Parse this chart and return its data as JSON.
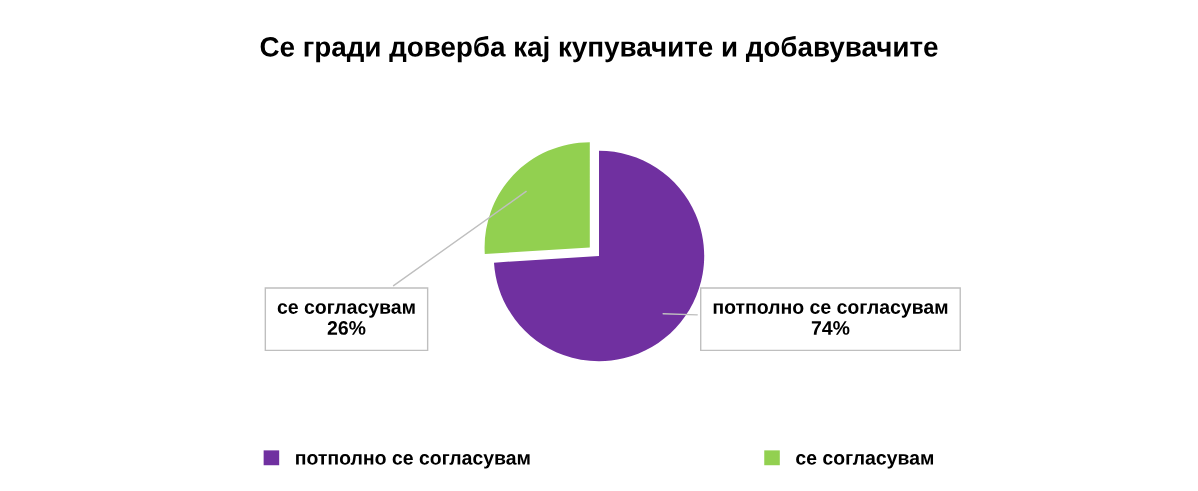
{
  "chart_data": {
    "type": "pie",
    "title": "Се гради доверба кај купувачите и добавувачите",
    "categories": [
      "потполно се согласувам",
      "се согласувам"
    ],
    "values": [
      74,
      26
    ],
    "colors": [
      "#7030a0",
      "#92d050"
    ],
    "value_labels": [
      "74%",
      "26%"
    ],
    "legend": "bottom"
  }
}
